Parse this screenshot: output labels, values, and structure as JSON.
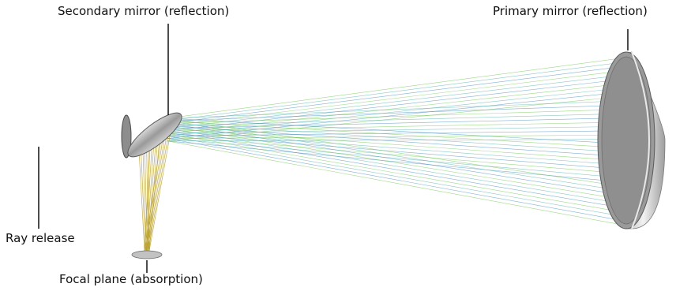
{
  "labels": {
    "secondary": "Secondary mirror (reflection)",
    "primary": "Primary mirror (reflection)",
    "release": "Ray release",
    "focal": "Focal plane (absorption)"
  },
  "colors": {
    "release": "#d43a3a",
    "incoming": "#9b3fb0",
    "toward_primary": "#2f7fb8",
    "reflected_primary": "#3fa7a0",
    "toward_secondary": "#5bbf3a",
    "to_focus": "#b59a1a",
    "mirror_face": "#8a8a8a",
    "mirror_rim": "#c8c8c8"
  }
}
